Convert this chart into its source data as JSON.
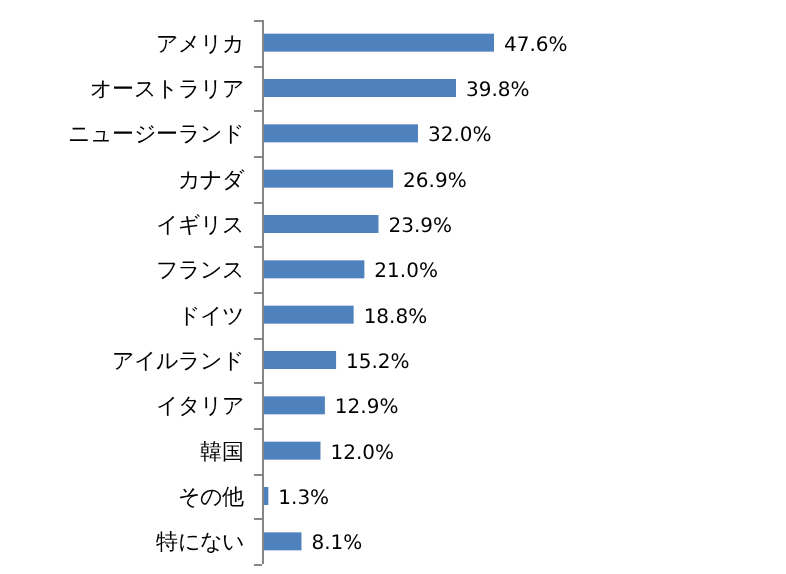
{
  "chart_data": {
    "type": "bar",
    "orientation": "horizontal",
    "categories": [
      "アメリカ",
      "オーストラリア",
      "ニュージーランド",
      "カナダ",
      "イギリス",
      "フランス",
      "ドイツ",
      "アイルランド",
      "イタリア",
      "韓国",
      "その他",
      "特にない"
    ],
    "values": [
      47.6,
      39.8,
      32.0,
      26.9,
      23.9,
      21.0,
      18.8,
      15.2,
      12.9,
      12.0,
      1.3,
      8.1
    ],
    "value_labels": [
      "47.6%",
      "39.8%",
      "32.0%",
      "26.9%",
      "23.9%",
      "21.0%",
      "18.8%",
      "15.2%",
      "12.9%",
      "12.0%",
      "1.3%",
      "8.1%"
    ],
    "color": "#4f81bd"
  }
}
